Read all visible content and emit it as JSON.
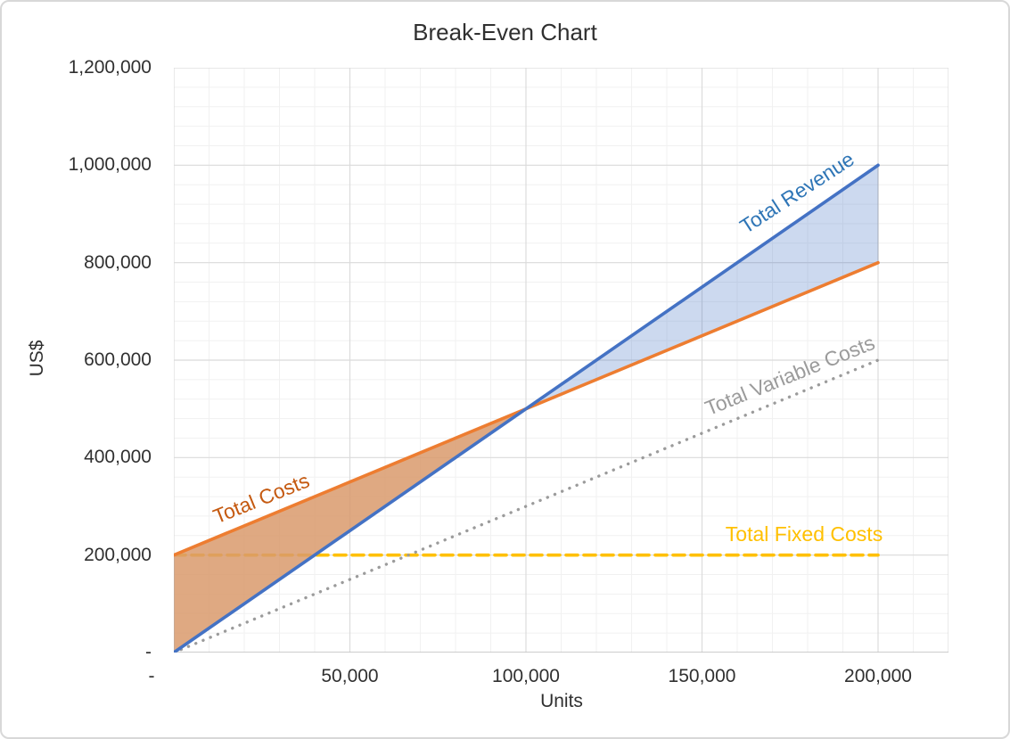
{
  "chart_data": {
    "type": "line",
    "title": "Break-Even Chart",
    "xlabel": "Units",
    "ylabel": "US$",
    "x_axis": {
      "min": 0,
      "max": 220000,
      "major_step": 50000,
      "minor_step": 10000,
      "tick_values": [
        0,
        50000,
        100000,
        150000,
        200000
      ],
      "tick_labels": [
        "-",
        "50,000",
        "100,000",
        "150,000",
        "200,000"
      ]
    },
    "y_axis": {
      "min": 0,
      "max": 1200000,
      "major_step": 200000,
      "minor_step": 40000,
      "tick_values": [
        0,
        200000,
        400000,
        600000,
        800000,
        1000000,
        1200000
      ],
      "tick_labels": [
        "-",
        "200,000",
        "400,000",
        "600,000",
        "800,000",
        "1,000,000",
        "1,200,000"
      ]
    },
    "series": [
      {
        "name": "Total Revenue",
        "line_color": "#4472C4",
        "label_color": "#2E75B6",
        "style": "solid",
        "points": [
          [
            0,
            0
          ],
          [
            200000,
            1000000
          ]
        ]
      },
      {
        "name": "Total Costs",
        "line_color": "#ED7D31",
        "label_color": "#C55A11",
        "style": "solid",
        "points": [
          [
            0,
            200000
          ],
          [
            200000,
            800000
          ]
        ]
      },
      {
        "name": "Total Variable Costs",
        "line_color": "#9B9B9B",
        "label_color": "#9B9B9B",
        "style": "dotted",
        "points": [
          [
            0,
            0
          ],
          [
            200000,
            600000
          ]
        ]
      },
      {
        "name": "Total Fixed Costs",
        "line_color": "#FFC000",
        "label_color": "#FFC000",
        "style": "dashed",
        "points": [
          [
            0,
            200000
          ],
          [
            200000,
            200000
          ]
        ]
      }
    ],
    "regions": [
      {
        "name": "loss-area",
        "fill": "#D99A6C",
        "opacity": 0.85,
        "polygon": [
          [
            0,
            0
          ],
          [
            0,
            200000
          ],
          [
            100000,
            500000
          ]
        ]
      },
      {
        "name": "profit-area",
        "fill": "#4472C4",
        "opacity": 0.27,
        "polygon": [
          [
            100000,
            500000
          ],
          [
            200000,
            1000000
          ],
          [
            200000,
            800000
          ]
        ]
      }
    ],
    "break_even_point": {
      "units": 100000,
      "us_dollars": 500000
    },
    "grid": {
      "minor_color": "#F1F1F1",
      "major_color": "#DBDBDB",
      "axis_line_color": "#BFBFBF",
      "region_edge_color": "#A8AFBC"
    },
    "text_color": "#303030",
    "border_color": "#D8D8D8"
  }
}
